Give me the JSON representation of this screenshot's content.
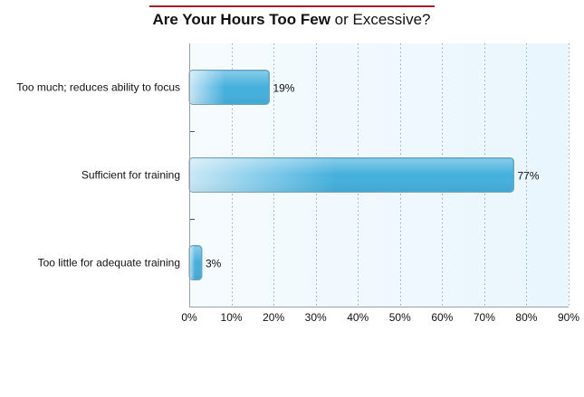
{
  "chart_data": {
    "type": "bar",
    "orientation": "horizontal",
    "title_parts": {
      "bold": "Are Your Hours Too Few",
      "normal": " or Excessive?"
    },
    "categories": [
      "Too much; reduces ability to focus",
      "Sufficient for training",
      "Too little for adequate training"
    ],
    "values": [
      19,
      77,
      3
    ],
    "value_labels": [
      "19%",
      "77%",
      "3%"
    ],
    "xlim": [
      0,
      90
    ],
    "x_ticks": [
      0,
      10,
      20,
      30,
      40,
      50,
      60,
      70,
      80,
      90
    ],
    "x_tick_labels": [
      "0%",
      "10%",
      "20%",
      "30%",
      "40%",
      "50%",
      "60%",
      "70%",
      "80%",
      "90%"
    ],
    "xlabel": "",
    "ylabel": "",
    "grid": "vertical dotted",
    "legend": "none",
    "colors": {
      "bar_light": "#c9e8f5",
      "bar_dark": "#45b0dc",
      "bar_stroke": "#6f9fb8",
      "title_rule": "#a31f24",
      "plot_bg": "#eef8fd",
      "grid": "#9aa9b0",
      "axis": "#9aa0a4",
      "text": "#111111"
    }
  }
}
